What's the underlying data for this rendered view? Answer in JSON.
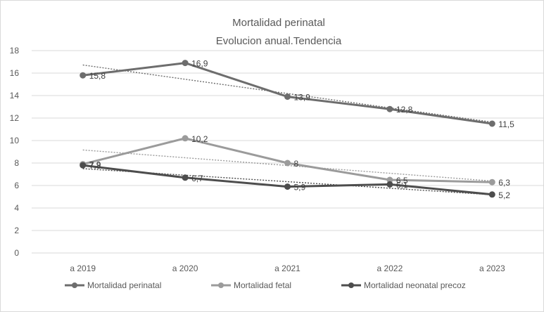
{
  "chart_data": {
    "type": "line",
    "title": "Mortalidad perinatal",
    "subtitle": "Evolucion anual.Tendencia",
    "categories": [
      "a 2019",
      "a 2020",
      "a 2021",
      "a 2022",
      "a 2023"
    ],
    "ylim": [
      0,
      18
    ],
    "yticks": [
      0,
      2,
      4,
      6,
      8,
      10,
      12,
      14,
      16,
      18
    ],
    "grid": true,
    "legend": "bottom",
    "trendlines": true,
    "series": [
      {
        "name": "Mortalidad perinatal",
        "values": [
          15.8,
          16.9,
          13.9,
          12.8,
          11.5
        ],
        "labels": [
          "15,8",
          "16,9",
          "13,9",
          "12,8",
          "11,5"
        ],
        "color": "#6d6d6d"
      },
      {
        "name": "Mortalidad fetal",
        "values": [
          7.9,
          10.2,
          8,
          6.5,
          6.3
        ],
        "labels": [
          "7,9",
          "10,2",
          "8",
          "6,5",
          "6,3"
        ],
        "color": "#9b9b9b"
      },
      {
        "name": "Mortalidad neonatal precoz",
        "values": [
          7.8,
          6.7,
          5.9,
          6.1,
          5.2
        ],
        "labels": [
          "7,8",
          "6,7",
          "5,9",
          "6,1",
          "5,2"
        ],
        "color": "#4d4d4d"
      }
    ]
  }
}
